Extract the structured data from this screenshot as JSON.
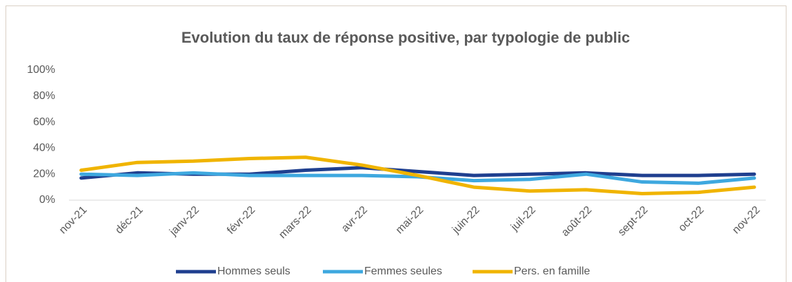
{
  "chart_data": {
    "type": "line",
    "title": "Evolution du taux de réponse positive, par typologie de public",
    "categories": [
      "nov-21",
      "déc-21",
      "janv-22",
      "févr-22",
      "mars-22",
      "avr-22",
      "mai-22",
      "juin-22",
      "juil-22",
      "août-22",
      "sept-22",
      "oct-22",
      "nov-22"
    ],
    "series": [
      {
        "name": "Hommes seuls",
        "color": "#1f3f8f",
        "values": [
          17,
          21,
          20,
          20,
          23,
          25,
          22,
          19,
          20,
          21,
          19,
          19,
          20
        ]
      },
      {
        "name": "Femmes seules",
        "color": "#3ea8df",
        "values": [
          20,
          19,
          21,
          19,
          19,
          19,
          18,
          15,
          16,
          20,
          14,
          13,
          17
        ]
      },
      {
        "name": "Pers. en famille",
        "color": "#f0b400",
        "values": [
          23,
          29,
          30,
          32,
          33,
          27,
          19,
          10,
          7,
          8,
          5,
          6,
          10
        ]
      }
    ],
    "ylim": [
      0,
      100
    ],
    "yticks": [
      {
        "value": 0,
        "label": "0%"
      },
      {
        "value": 20,
        "label": "20%"
      },
      {
        "value": 40,
        "label": "40%"
      },
      {
        "value": 60,
        "label": "60%"
      },
      {
        "value": 80,
        "label": "80%"
      },
      {
        "value": 100,
        "label": "100%"
      }
    ],
    "grid": false
  }
}
